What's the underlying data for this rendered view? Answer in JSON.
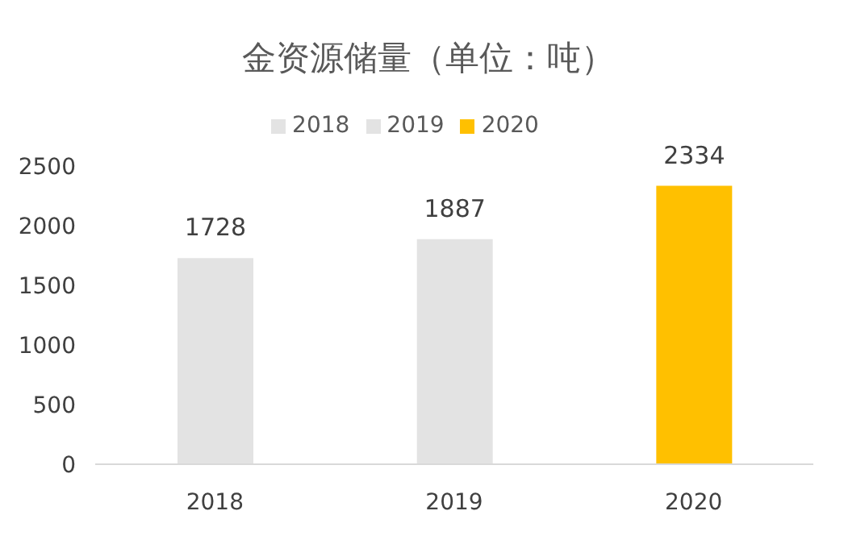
{
  "chart_data": {
    "type": "bar",
    "title": "金资源储量（单位：吨）",
    "categories": [
      "2018",
      "2019",
      "2020"
    ],
    "stacked": true,
    "series": [
      {
        "name": "2018",
        "color": "#e3e3e3",
        "values": [
          1728,
          null,
          null
        ]
      },
      {
        "name": "2019",
        "color": "#e3e3e3",
        "values": [
          null,
          1887,
          null
        ]
      },
      {
        "name": "2020",
        "color": "#ffc000",
        "values": [
          null,
          null,
          2334
        ]
      }
    ],
    "ylim": [
      0,
      2500
    ],
    "yticks": [
      0,
      500,
      1000,
      1500,
      2000,
      2500
    ],
    "data_labels": true,
    "legend": "top",
    "grid": false
  }
}
